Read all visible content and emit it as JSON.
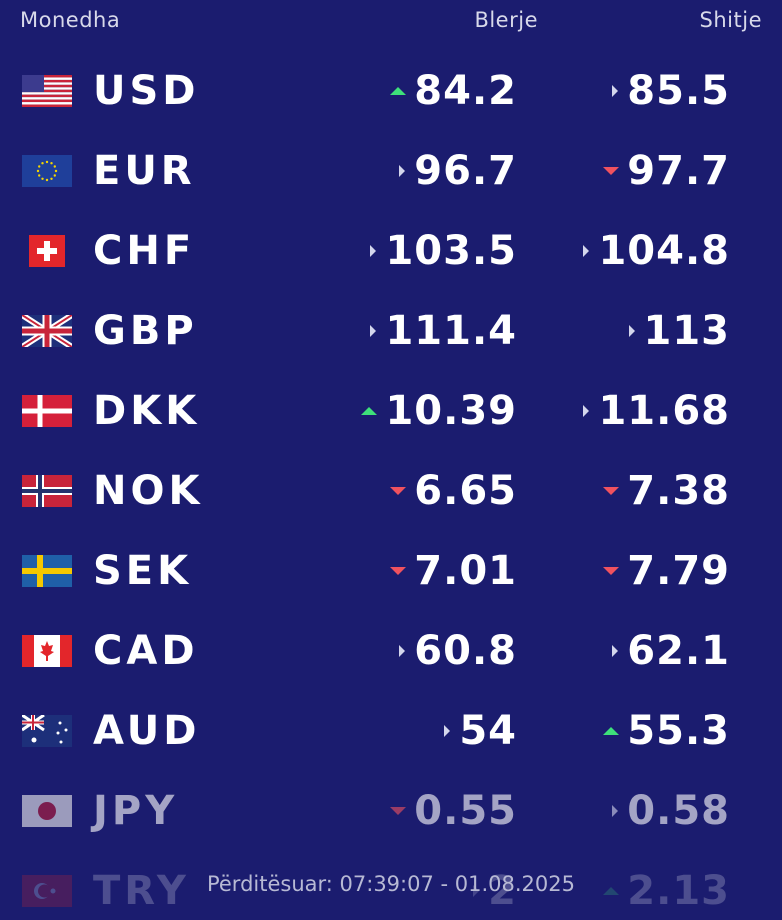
{
  "header": {
    "currency": "Monedha",
    "buy": "Blerje",
    "sell": "Shitje"
  },
  "rows": [
    {
      "code": "USD",
      "buy": 84.2,
      "buy_trend": "up",
      "sell": 85.5,
      "sell_trend": "neutral"
    },
    {
      "code": "EUR",
      "buy": 96.7,
      "buy_trend": "neutral",
      "sell": 97.7,
      "sell_trend": "down"
    },
    {
      "code": "CHF",
      "buy": 103.5,
      "buy_trend": "neutral",
      "sell": 104.8,
      "sell_trend": "neutral"
    },
    {
      "code": "GBP",
      "buy": 111.4,
      "buy_trend": "neutral",
      "sell": 113,
      "sell_trend": "neutral"
    },
    {
      "code": "DKK",
      "buy": 10.39,
      "buy_trend": "up",
      "sell": 11.68,
      "sell_trend": "neutral"
    },
    {
      "code": "NOK",
      "buy": 6.65,
      "buy_trend": "down",
      "sell": 7.38,
      "sell_trend": "down"
    },
    {
      "code": "SEK",
      "buy": 7.01,
      "buy_trend": "down",
      "sell": 7.79,
      "sell_trend": "down"
    },
    {
      "code": "CAD",
      "buy": 60.8,
      "buy_trend": "neutral",
      "sell": 62.1,
      "sell_trend": "neutral"
    },
    {
      "code": "AUD",
      "buy": 54,
      "buy_trend": "neutral",
      "sell": 55.3,
      "sell_trend": "up"
    },
    {
      "code": "JPY",
      "buy": 0.55,
      "buy_trend": "down",
      "sell": 0.58,
      "sell_trend": "neutral"
    },
    {
      "code": "TRY",
      "buy": 2,
      "buy_trend": "neutral",
      "sell": 2.13,
      "sell_trend": "up"
    }
  ],
  "footer": "Përditësuar: 07:39:07 - 01.08.2025"
}
